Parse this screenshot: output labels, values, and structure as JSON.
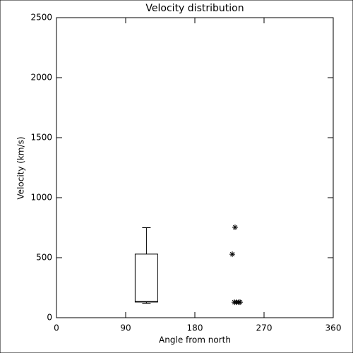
{
  "chart_data": {
    "type": "box",
    "title": "Velocity distribution",
    "xlabel": "Angle from north",
    "ylabel": "Velocity (km/s)",
    "xlim": [
      0,
      360
    ],
    "xticks": [
      0,
      90,
      180,
      270,
      360
    ],
    "ylim": [
      0,
      2500
    ],
    "yticks": [
      0,
      500,
      1000,
      1500,
      2000,
      2500
    ],
    "color": "#000000",
    "boxes": [
      {
        "x": 117,
        "whislo": 120,
        "q1": 130,
        "med": 135,
        "q3": 530,
        "whishi": 750
      }
    ],
    "points": {
      "x": [
        228.7,
        232.3,
        231.4,
        234.2,
        237,
        238.8
      ],
      "values": [
        529,
        753,
        129,
        129,
        129,
        129
      ]
    }
  }
}
